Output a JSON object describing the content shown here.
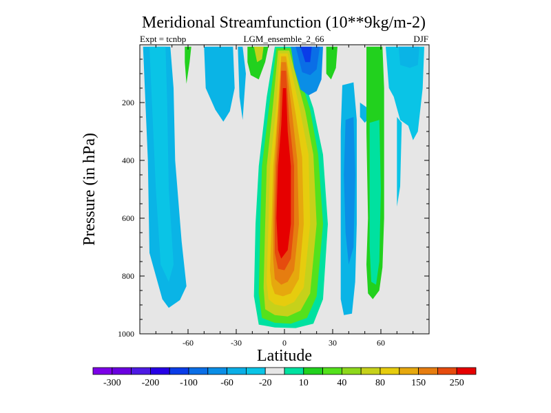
{
  "chart_data": {
    "type": "heatmap",
    "subtype": "filled-contour",
    "title": "Meridional Streamfunction (10**9kg/m-2)",
    "subtitle_left": "Expt = tcnbp",
    "subtitle_center": "LGM_ensemble_2_66",
    "subtitle_right": "DJF",
    "xlabel": "Latitude",
    "ylabel": "Pressure (in hPa)",
    "xlim": [
      -90,
      90
    ],
    "ylim": [
      1000,
      0
    ],
    "xticks": [
      -60,
      -30,
      0,
      30,
      60
    ],
    "yticks": [
      200,
      400,
      600,
      800,
      1000
    ],
    "background_color": "#e6e6e6",
    "colorbar": {
      "colors": [
        "#7c00e8",
        "#6a00e0",
        "#4d1ae4",
        "#2600e6",
        "#0a3ce8",
        "#0a6ee6",
        "#0a8ee6",
        "#0aaee6",
        "#0ac4e6",
        "#e6e6e6",
        "#00e1a0",
        "#22d11e",
        "#54e11c",
        "#8ed81c",
        "#c6d11a",
        "#e6cc0e",
        "#e6a80e",
        "#e67d10",
        "#e64b0e",
        "#e60000"
      ],
      "labels": [
        "-300",
        "-200",
        "-100",
        "-60",
        "-20",
        "10",
        "40",
        "80",
        "150",
        "250"
      ]
    },
    "regions": [
      {
        "name": "sh-cell-left",
        "color": "#0ab4e6",
        "points": [
          [
            -88,
            7
          ],
          [
            -71,
            7
          ],
          [
            -69,
            150
          ],
          [
            -68,
            400
          ],
          [
            -64,
            680
          ],
          [
            -61,
            835
          ],
          [
            -65,
            883
          ],
          [
            -72,
            910
          ],
          [
            -76,
            880
          ],
          [
            -84,
            720
          ],
          [
            -85,
            400
          ]
        ]
      },
      {
        "name": "sh-cell-left-inner",
        "color": "#0ac4e6",
        "points": [
          [
            -84,
            7
          ],
          [
            -74,
            7
          ],
          [
            -73,
            200
          ],
          [
            -72,
            500
          ],
          [
            -69,
            760
          ],
          [
            -72,
            820
          ],
          [
            -77,
            760
          ],
          [
            -80,
            500
          ]
        ]
      },
      {
        "name": "sh-strip-green",
        "color": "#22d11e",
        "points": [
          [
            -62,
            7
          ],
          [
            -58,
            7
          ],
          [
            -59,
            60
          ],
          [
            -61,
            135
          ],
          [
            -62,
            60
          ]
        ]
      },
      {
        "name": "sh-strip-mid",
        "color": "#0ab4e6",
        "points": [
          [
            -50,
            7
          ],
          [
            -32,
            7
          ],
          [
            -31,
            150
          ],
          [
            -34,
            230
          ],
          [
            -38,
            266
          ],
          [
            -43,
            225
          ],
          [
            -49,
            150
          ]
        ]
      },
      {
        "name": "sh-strip-right",
        "color": "#0ab4e6",
        "points": [
          [
            -29,
            7
          ],
          [
            -26,
            7
          ],
          [
            -24,
            100
          ],
          [
            -26,
            260
          ],
          [
            -28,
            180
          ]
        ]
      },
      {
        "name": "top-left-green",
        "color": "#22d11e",
        "points": [
          [
            -23,
            7
          ],
          [
            -10,
            7
          ],
          [
            -12,
            60
          ],
          [
            -16,
            120
          ],
          [
            -21,
            105
          ],
          [
            -23,
            60
          ]
        ]
      },
      {
        "name": "top-left-yellow",
        "color": "#c6d11a",
        "points": [
          [
            -19,
            7
          ],
          [
            -13,
            7
          ],
          [
            -14,
            50
          ],
          [
            -17,
            60
          ]
        ]
      },
      {
        "name": "main-cell-l1",
        "color": "#00e1a0",
        "points": [
          [
            -6,
            7
          ],
          [
            5,
            7
          ],
          [
            18,
            220
          ],
          [
            24,
            380
          ],
          [
            27,
            620
          ],
          [
            24,
            880
          ],
          [
            18,
            965
          ],
          [
            7,
            980
          ],
          [
            -6,
            978
          ],
          [
            -16,
            968
          ],
          [
            -19,
            870
          ],
          [
            -18,
            620
          ],
          [
            -16,
            420
          ],
          [
            -11,
            180
          ]
        ]
      },
      {
        "name": "main-cell-l2",
        "color": "#54e11c",
        "points": [
          [
            -5,
            12
          ],
          [
            4,
            12
          ],
          [
            16,
            225
          ],
          [
            21,
            380
          ],
          [
            24,
            620
          ],
          [
            20,
            870
          ],
          [
            14,
            945
          ],
          [
            4,
            965
          ],
          [
            -6,
            962
          ],
          [
            -14,
            945
          ],
          [
            -16,
            860
          ],
          [
            -15,
            620
          ],
          [
            -14,
            420
          ],
          [
            -9,
            190
          ]
        ]
      },
      {
        "name": "main-cell-l3",
        "color": "#c6d11a",
        "points": [
          [
            -4,
            20
          ],
          [
            3,
            20
          ],
          [
            13,
            230
          ],
          [
            18,
            380
          ],
          [
            20,
            620
          ],
          [
            16,
            860
          ],
          [
            10,
            920
          ],
          [
            2,
            940
          ],
          [
            -6,
            935
          ],
          [
            -12,
            915
          ],
          [
            -13,
            840
          ],
          [
            -12,
            620
          ],
          [
            -11,
            420
          ],
          [
            -7,
            200
          ]
        ]
      },
      {
        "name": "main-cell-l4",
        "color": "#e6cc0e",
        "points": [
          [
            -3,
            30
          ],
          [
            2,
            30
          ],
          [
            10,
            235
          ],
          [
            15,
            380
          ],
          [
            16,
            620
          ],
          [
            12,
            840
          ],
          [
            6,
            890
          ],
          [
            0,
            905
          ],
          [
            -6,
            898
          ],
          [
            -10,
            880
          ],
          [
            -11,
            820
          ],
          [
            -10,
            620
          ],
          [
            -9,
            420
          ],
          [
            -5,
            210
          ]
        ]
      },
      {
        "name": "main-cell-l5",
        "color": "#e6a80e",
        "points": [
          [
            -2,
            40
          ],
          [
            1,
            40
          ],
          [
            7,
            240
          ],
          [
            11,
            390
          ],
          [
            12,
            620
          ],
          [
            9,
            810
          ],
          [
            4,
            860
          ],
          [
            -1,
            870
          ],
          [
            -6,
            862
          ],
          [
            -8,
            830
          ],
          [
            -9,
            780
          ],
          [
            -8,
            620
          ],
          [
            -7,
            420
          ],
          [
            -4,
            220
          ]
        ]
      },
      {
        "name": "main-cell-l6",
        "color": "#e67d10",
        "points": [
          [
            -2,
            60
          ],
          [
            1,
            60
          ],
          [
            5,
            250
          ],
          [
            8,
            400
          ],
          [
            9,
            620
          ],
          [
            6,
            780
          ],
          [
            2,
            820
          ],
          [
            -2,
            830
          ],
          [
            -6,
            810
          ],
          [
            -7,
            740
          ],
          [
            -7,
            600
          ],
          [
            -6,
            420
          ],
          [
            -4,
            240
          ]
        ]
      },
      {
        "name": "main-cell-l7",
        "color": "#e64b0e",
        "points": [
          [
            -2,
            90
          ],
          [
            1,
            90
          ],
          [
            3,
            260
          ],
          [
            6,
            420
          ],
          [
            6,
            620
          ],
          [
            4,
            740
          ],
          [
            0,
            780
          ],
          [
            -4,
            775
          ],
          [
            -6,
            720
          ],
          [
            -6,
            600
          ],
          [
            -5,
            420
          ],
          [
            -3,
            260
          ]
        ]
      },
      {
        "name": "main-cell-core",
        "color": "#e60000",
        "points": [
          [
            -1,
            150
          ],
          [
            1,
            150
          ],
          [
            2,
            300
          ],
          [
            4,
            420
          ],
          [
            4,
            620
          ],
          [
            2,
            710
          ],
          [
            -2,
            740
          ],
          [
            -4,
            710
          ],
          [
            -5,
            600
          ],
          [
            -4,
            420
          ],
          [
            -2,
            280
          ]
        ]
      },
      {
        "name": "top-blue-l1",
        "color": "#0a8ee6",
        "points": [
          [
            4,
            7
          ],
          [
            24,
            7
          ],
          [
            23,
            120
          ],
          [
            20,
            160
          ],
          [
            15,
            175
          ],
          [
            10,
            155
          ],
          [
            6,
            80
          ]
        ]
      },
      {
        "name": "top-blue-l2",
        "color": "#0a6ee6",
        "points": [
          [
            7,
            7
          ],
          [
            22,
            7
          ],
          [
            20,
            85
          ],
          [
            16,
            105
          ],
          [
            11,
            95
          ]
        ]
      },
      {
        "name": "top-blue-l3",
        "color": "#0a3ce8",
        "points": [
          [
            10,
            7
          ],
          [
            17,
            7
          ],
          [
            16,
            60
          ],
          [
            13,
            60
          ]
        ]
      },
      {
        "name": "top-right-green",
        "color": "#22d11e",
        "points": [
          [
            26,
            7
          ],
          [
            33,
            7
          ],
          [
            32,
            80
          ],
          [
            29,
            120
          ],
          [
            26,
            100
          ]
        ]
      },
      {
        "name": "nh-cell-blue",
        "color": "#0ab4e6",
        "points": [
          [
            36,
            140
          ],
          [
            43,
            130
          ],
          [
            45,
            260
          ],
          [
            45,
            620
          ],
          [
            44,
            820
          ],
          [
            42,
            930
          ],
          [
            37,
            935
          ],
          [
            35,
            880
          ],
          [
            35,
            620
          ],
          [
            35,
            300
          ]
        ]
      },
      {
        "name": "nh-cell-blue-inner",
        "color": "#0a8ee6",
        "points": [
          [
            38,
            260
          ],
          [
            43,
            250
          ],
          [
            44,
            450
          ],
          [
            43,
            700
          ],
          [
            40,
            760
          ],
          [
            38,
            650
          ],
          [
            37,
            450
          ]
        ]
      },
      {
        "name": "nh-cell-small",
        "color": "#0ab4e6",
        "points": [
          [
            47,
            200
          ],
          [
            52,
            220
          ],
          [
            53,
            250
          ],
          [
            50,
            270
          ],
          [
            47,
            250
          ]
        ]
      },
      {
        "name": "nh-cell-green",
        "color": "#22d11e",
        "points": [
          [
            51,
            7
          ],
          [
            61,
            7
          ],
          [
            62,
            150
          ],
          [
            62,
            600
          ],
          [
            61,
            770
          ],
          [
            59,
            850
          ],
          [
            55,
            880
          ],
          [
            52,
            860
          ],
          [
            51,
            760
          ],
          [
            52,
            600
          ],
          [
            51,
            300
          ]
        ]
      },
      {
        "name": "nh-cell-green-inner",
        "color": "#00e1a0",
        "points": [
          [
            53,
            270
          ],
          [
            59,
            260
          ],
          [
            60,
            500
          ],
          [
            59,
            750
          ],
          [
            57,
            830
          ],
          [
            54,
            820
          ],
          [
            53,
            700
          ],
          [
            53,
            500
          ]
        ]
      },
      {
        "name": "nh-cell-right",
        "color": "#0ac4e6",
        "points": [
          [
            63,
            7
          ],
          [
            87,
            7
          ],
          [
            86,
            150
          ],
          [
            83,
            300
          ],
          [
            80,
            330
          ],
          [
            77,
            280
          ],
          [
            72,
            260
          ],
          [
            70,
            220
          ],
          [
            68,
            180
          ],
          [
            65,
            150
          ]
        ]
      },
      {
        "name": "nh-cell-right-tail",
        "color": "#0ac4e6",
        "points": [
          [
            70,
            250
          ],
          [
            73,
            270
          ],
          [
            72,
            490
          ],
          [
            70,
            560
          ],
          [
            70,
            420
          ]
        ]
      },
      {
        "name": "nh-cell-right-inner",
        "color": "#0ab4e6",
        "points": [
          [
            71,
            7
          ],
          [
            84,
            7
          ],
          [
            83,
            70
          ],
          [
            78,
            80
          ],
          [
            72,
            70
          ]
        ]
      }
    ]
  }
}
